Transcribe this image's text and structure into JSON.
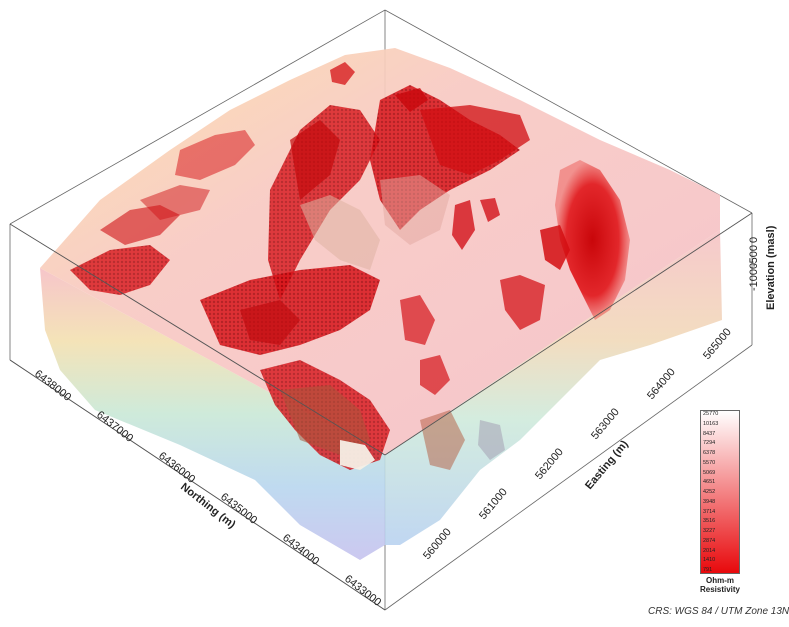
{
  "northing_axis": {
    "title": "Northing (m)",
    "ticks": [
      "6438000",
      "6437000",
      "6436000",
      "6435000",
      "6434000",
      "6433000"
    ]
  },
  "easting_axis": {
    "title": "Easting (m)",
    "ticks": [
      "560000",
      "561000",
      "562000",
      "563000",
      "564000",
      "565000"
    ]
  },
  "elevation_axis": {
    "title": "Elevation (masl)",
    "ticks": [
      "0",
      "-500",
      "-1000"
    ]
  },
  "legend": {
    "values": [
      "25770",
      "10163",
      "8437",
      "7294",
      "6378",
      "5570",
      "5069",
      "4651",
      "4252",
      "3948",
      "3714",
      "3516",
      "3227",
      "2874",
      "2014",
      "1410",
      "791"
    ],
    "unit": "Ohm-m",
    "quantity": "Resistivity",
    "color_high": "#ffffff",
    "color_low": "#e8090c"
  },
  "crs": "CRS: WGS 84 / UTM Zone 13N"
}
